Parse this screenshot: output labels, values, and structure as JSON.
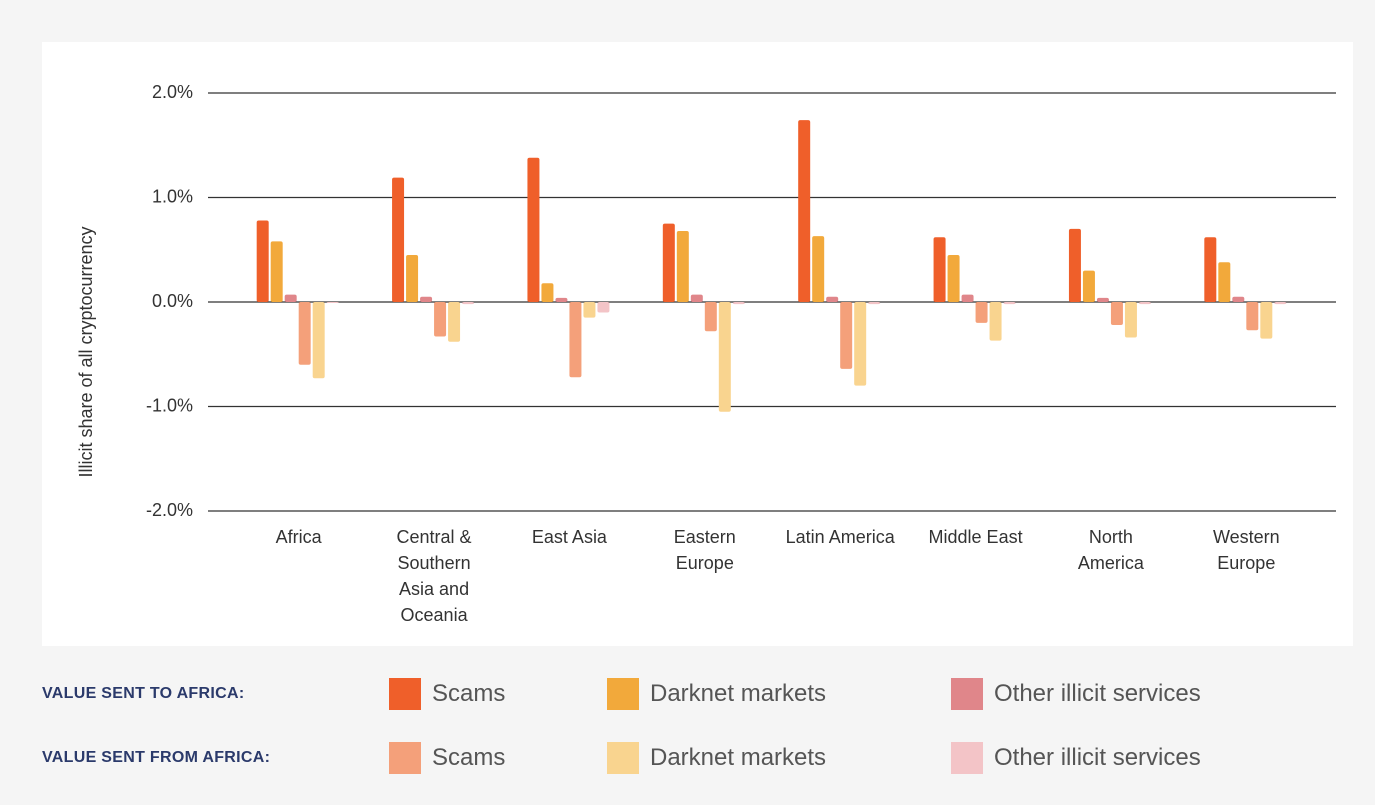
{
  "chart_data": {
    "type": "bar",
    "ylabel": "Illicit share of all cryptocurrency",
    "categories": [
      "Africa",
      "Central & Southern Asia and Oceania",
      "East Asia",
      "Eastern Europe",
      "Latin America",
      "Middle East",
      "North America",
      "Western Europe"
    ],
    "legend_groups": [
      "VALUE SENT TO AFRICA:",
      "VALUE SENT FROM AFRICA:"
    ],
    "series": [
      {
        "name": "Scams",
        "color": "#ef5f2a",
        "values": [
          0.78,
          1.19,
          1.38,
          0.75,
          1.74,
          0.62,
          0.7,
          0.62
        ]
      },
      {
        "name": "Darknet markets",
        "color": "#f2a93b",
        "values": [
          0.58,
          0.45,
          0.18,
          0.68,
          0.63,
          0.45,
          0.3,
          0.38
        ]
      },
      {
        "name": "Other illicit services",
        "color": "#e0868a",
        "values": [
          0.07,
          0.05,
          0.04,
          0.07,
          0.05,
          0.07,
          0.04,
          0.05
        ]
      },
      {
        "name": "Scams",
        "color": "#f4a07a",
        "values": [
          -0.6,
          -0.33,
          -0.72,
          -0.28,
          -0.64,
          -0.2,
          -0.22,
          -0.27
        ]
      },
      {
        "name": "Darknet markets",
        "color": "#f9d48f",
        "values": [
          -0.73,
          -0.38,
          -0.15,
          -1.05,
          -0.8,
          -0.37,
          -0.34,
          -0.35
        ]
      },
      {
        "name": "Other illicit services",
        "color": "#f3c4c7",
        "values": [
          -0.01,
          -0.02,
          -0.1,
          -0.02,
          -0.02,
          -0.02,
          -0.02,
          -0.02
        ]
      }
    ],
    "ylim": [
      -2,
      2
    ],
    "yticks": [
      {
        "value": 2,
        "label": "2.0%"
      },
      {
        "value": 1,
        "label": "1.0%"
      },
      {
        "value": 0,
        "label": "0.0%"
      },
      {
        "value": -1,
        "label": "-1.0%"
      },
      {
        "value": -2,
        "label": "-2.0%"
      }
    ],
    "grid": true
  }
}
